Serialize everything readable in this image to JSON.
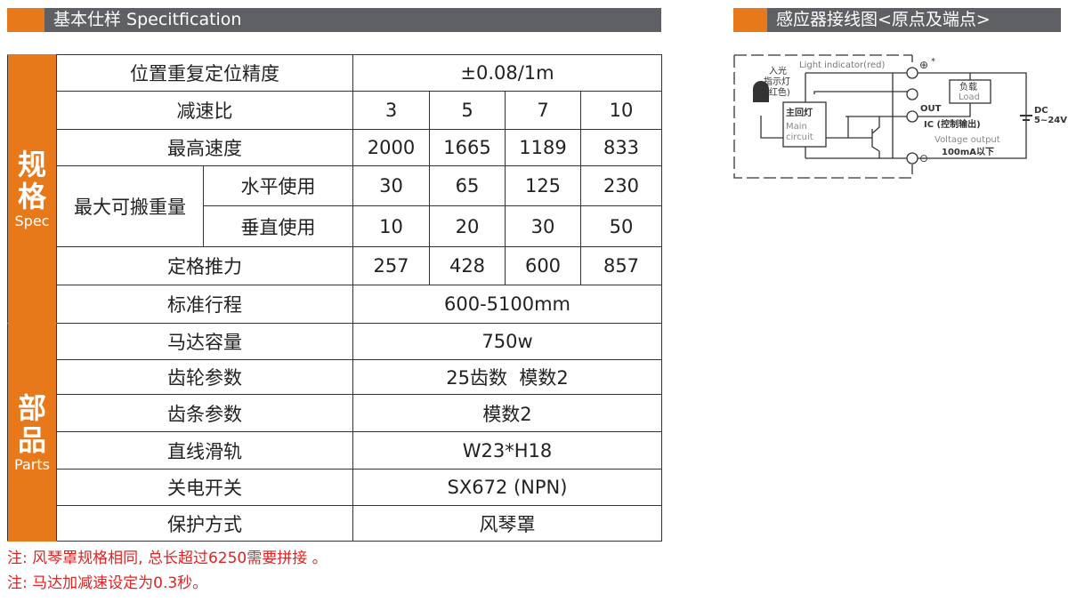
{
  "spec_header": {
    "title": "基本仕样 Specitfication"
  },
  "wiring_header": {
    "title": "感应器接线图<原点及端点>"
  },
  "colors": {
    "accent": "#e8791a",
    "header_gray": "#5f6064",
    "note_red": "#e02424"
  },
  "table": {
    "spec_group": {
      "cn_line1": "规",
      "cn_line2": "格",
      "en": "Spec"
    },
    "parts_group": {
      "cn_line1": "部",
      "cn_line2": "品",
      "en": "Parts"
    },
    "rows": {
      "repeat_accuracy": {
        "label": "位置重复定位精度",
        "value": "±0.08/1m"
      },
      "reduction_ratio": {
        "label": "减速比",
        "values": [
          "3",
          "5",
          "7",
          "10"
        ]
      },
      "max_speed": {
        "label": "最高速度",
        "values": [
          "2000",
          "1665",
          "1189",
          "833"
        ]
      },
      "max_payload": {
        "label": "最大可搬重量",
        "horizontal": {
          "label": "水平使用",
          "values": [
            "30",
            "65",
            "125",
            "230"
          ]
        },
        "vertical": {
          "label": "垂直使用",
          "values": [
            "10",
            "20",
            "30",
            "50"
          ]
        }
      },
      "rated_thrust": {
        "label": "定格推力",
        "values": [
          "257",
          "428",
          "600",
          "857"
        ]
      },
      "standard_stroke": {
        "label": "标准行程",
        "value": "600-5100mm"
      },
      "motor_capacity": {
        "label": "马达容量",
        "value": "750w"
      },
      "gear_params": {
        "label": "齿轮参数",
        "value": "25齿数  模数2"
      },
      "rack_params": {
        "label": "齿条参数",
        "value": "模数2"
      },
      "linear_guide": {
        "label": "直线滑轨",
        "value": "W23*H18"
      },
      "switch": {
        "label": "关电开关",
        "value": "SX672 (NPN)"
      },
      "protection": {
        "label": "保护方式",
        "value": "风琴罩"
      }
    }
  },
  "notes": [
    "注: 风琴罩规格相同, 总长超过6250需要拼接 。",
    "注: 马达加减速设定为0.3秒。"
  ],
  "diagram": {
    "light_indicator": "Light indicator(red)",
    "incoming_light_1": "入光",
    "incoming_light_2": "指示灯",
    "incoming_light_3": "(红色)",
    "main_circuit_cn": "主回灯",
    "main_circuit_en1": "Main",
    "main_circuit_en2": "circuit",
    "load_cn": "负载",
    "load_en": "Load",
    "out": "OUT",
    "ic": "IC (控制输出)",
    "voltage_output": "Voltage output",
    "current": "100mA以下",
    "dc": "DC",
    "dc_range": "5~24V",
    "plus": "⊕",
    "minus": "⊖",
    "asterisk": "*"
  }
}
